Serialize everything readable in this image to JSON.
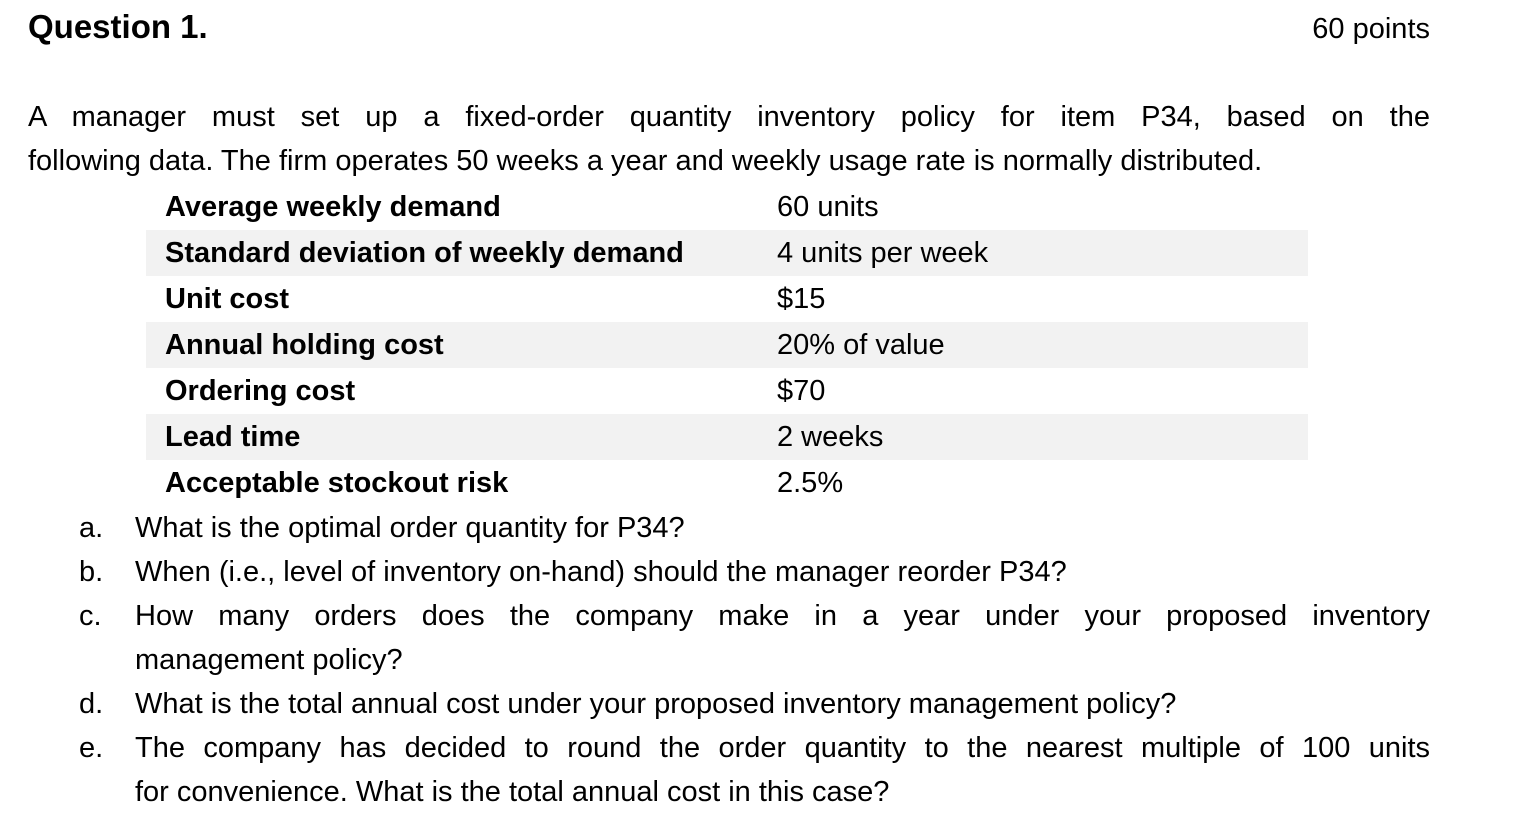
{
  "theme": {
    "shade_color": "#f2f2f2",
    "text_color": "#000000",
    "background_color": "#ffffff"
  },
  "header": {
    "title": "Question 1.",
    "points": "60 points"
  },
  "intro": {
    "lines": [
      {
        "text": "A manager must set up a fixed-order quantity inventory policy for item P34, based on the",
        "justify": true
      },
      {
        "text": "following data. The firm operates 50 weeks a year and weekly usage rate is normally distributed.",
        "justify": false
      }
    ]
  },
  "data_table": {
    "rows": [
      {
        "label": "Average weekly demand",
        "value": "60 units",
        "shaded": false
      },
      {
        "label": "Standard deviation of weekly demand",
        "value": "4 units per week",
        "shaded": true
      },
      {
        "label": "Unit cost",
        "value": "$15",
        "shaded": false
      },
      {
        "label": "Annual holding cost",
        "value": "20% of value",
        "shaded": true
      },
      {
        "label": "Ordering cost",
        "value": "$70",
        "shaded": false
      },
      {
        "label": "Lead time",
        "value": "2 weeks",
        "shaded": true
      },
      {
        "label": "Acceptable stockout risk",
        "value": "2.5%",
        "shaded": false
      }
    ]
  },
  "questions": [
    {
      "marker": "a.",
      "lines": [
        {
          "text": "What is the optimal order quantity for P34?",
          "justify": false
        }
      ]
    },
    {
      "marker": "b.",
      "lines": [
        {
          "text": "When (i.e., level of inventory on-hand) should the manager reorder P34?",
          "justify": false
        }
      ]
    },
    {
      "marker": "c.",
      "lines": [
        {
          "text": "How many orders does the company make in a year under your proposed inventory",
          "justify": true
        },
        {
          "text": "management policy?",
          "justify": false
        }
      ]
    },
    {
      "marker": "d.",
      "lines": [
        {
          "text": "What is the total annual cost under your proposed inventory management policy?",
          "justify": false
        }
      ]
    },
    {
      "marker": "e.",
      "lines": [
        {
          "text": "The company has decided to round the order quantity to the nearest multiple of 100 units",
          "justify": true
        },
        {
          "text": "for convenience. What is the total annual cost in this case?",
          "justify": false
        }
      ]
    }
  ]
}
